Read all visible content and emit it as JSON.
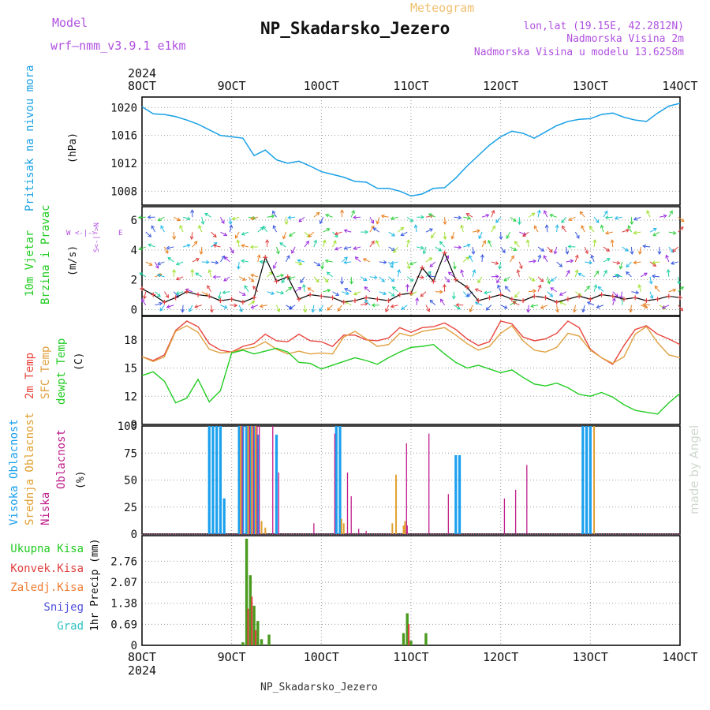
{
  "header": {
    "model_label": "Model",
    "model_value": "wrf–nmm_v3.9.1  e1km",
    "chart_kind": "Meteogram",
    "station": "NP_Skadarsko_Jezero",
    "lonlat": "lon,lat (19.15E, 42.2812N)",
    "altitude": "Nadmorska Visina 2m",
    "model_altitude": "Nadmorska Visina u modelu 13.6258m",
    "credit": "made by Angel",
    "footer_station": "NP_Skadarsko_Jezero"
  },
  "time_axis": {
    "year": "2024",
    "ticks": [
      "8OCT",
      "9OCT",
      "10OCT",
      "11OCT",
      "12OCT",
      "13OCT",
      "14OCT"
    ],
    "range_hours": [
      0,
      144
    ],
    "step_hours": 3
  },
  "colors": {
    "pressure": "#19a0e6",
    "temp2m": "#e8443c",
    "sfc": "#e0a040",
    "dewpt": "#22cc22",
    "high_cloud": "#1aa0ee",
    "mid_cloud": "#e0a030",
    "low_cloud": "#c0208c",
    "precip": "#4a9a1e",
    "conv": "#e04040",
    "snow": "#5050dd",
    "grad": "#30c0c0",
    "model": "#b050e0",
    "meteogram": "#f0c070"
  },
  "chart_data": [
    {
      "type": "line",
      "panel": "pressure",
      "ylabel_1": "Pritisak na nivou mora",
      "ylabel_2": "(hPa)",
      "ylim": [
        1006,
        1021.5
      ],
      "yticks": [
        1008,
        1012,
        1016,
        1020
      ],
      "x_hours": [
        0,
        3,
        6,
        9,
        12,
        15,
        18,
        21,
        24,
        27,
        30,
        33,
        36,
        39,
        42,
        45,
        48,
        51,
        54,
        57,
        60,
        63,
        66,
        69,
        72,
        75,
        78,
        81,
        84,
        87,
        90,
        93,
        96,
        99,
        102,
        105,
        108,
        111,
        114,
        117,
        120,
        123,
        126,
        129,
        132,
        135,
        138,
        141,
        144
      ],
      "series": [
        {
          "name": "",
          "values": [
            1020.1,
            1019.1,
            1019.0,
            1018.7,
            1018.2,
            1017.6,
            1016.8,
            1016.0,
            1015.8,
            1015.6,
            1013.1,
            1013.9,
            1012.5,
            1012.0,
            1012.3,
            1011.6,
            1010.8,
            1010.4,
            1010.0,
            1009.4,
            1009.3,
            1008.4,
            1008.4,
            1008.0,
            1007.3,
            1007.6,
            1008.4,
            1008.5,
            1009.9,
            1011.6,
            1013.1,
            1014.6,
            1015.8,
            1016.6,
            1016.3,
            1015.6,
            1016.5,
            1017.4,
            1018.0,
            1018.3,
            1018.4,
            1019.0,
            1019.2,
            1018.6,
            1018.2,
            1018.0,
            1019.2,
            1020.2,
            1020.6
          ]
        }
      ]
    },
    {
      "type": "line",
      "panel": "wind",
      "ylabel_1": "10m Vjetar",
      "ylabel_2": "Brzina i Pravac",
      "ylabel_3": "(m/s)",
      "compass": {
        "n": "N",
        "s": "S",
        "w": "W",
        "e": "E"
      },
      "ylim": [
        -0.4,
        6.9
      ],
      "yticks": [
        0,
        2,
        4,
        6
      ],
      "x_hours": [
        0,
        3,
        6,
        9,
        12,
        15,
        18,
        21,
        24,
        27,
        30,
        33,
        36,
        39,
        42,
        45,
        48,
        51,
        54,
        57,
        60,
        63,
        66,
        69,
        72,
        75,
        78,
        81,
        84,
        87,
        90,
        93,
        96,
        99,
        102,
        105,
        108,
        111,
        114,
        117,
        120,
        123,
        126,
        129,
        132,
        135,
        138,
        141,
        144
      ],
      "series": [
        {
          "name": "",
          "values": [
            1.4,
            1.0,
            0.5,
            0.8,
            1.2,
            1.0,
            0.9,
            0.6,
            0.7,
            0.5,
            0.8,
            3.5,
            1.9,
            2.2,
            0.7,
            1.0,
            0.9,
            0.8,
            0.5,
            0.6,
            0.8,
            0.7,
            0.6,
            1.0,
            1.1,
            2.8,
            1.9,
            3.8,
            2.0,
            1.5,
            0.6,
            0.8,
            1.0,
            0.7,
            0.6,
            0.9,
            0.8,
            0.5,
            0.7,
            0.9,
            0.7,
            1.0,
            0.9,
            0.7,
            0.8,
            0.6,
            0.7,
            0.9,
            0.8
          ]
        }
      ]
    },
    {
      "type": "line",
      "panel": "temperature",
      "ylabel_1": "2m Temp",
      "ylabel_2": "SFC Temp",
      "ylabel_3": "dewpt Temp",
      "ylabel_4": "(C)",
      "ylim": [
        9,
        20.5
      ],
      "yticks": [
        9,
        12,
        15,
        18
      ],
      "x_hours": [
        0,
        3,
        6,
        9,
        12,
        15,
        18,
        21,
        24,
        27,
        30,
        33,
        36,
        39,
        42,
        45,
        48,
        51,
        54,
        57,
        60,
        63,
        66,
        69,
        72,
        75,
        78,
        81,
        84,
        87,
        90,
        93,
        96,
        99,
        102,
        105,
        108,
        111,
        114,
        117,
        120,
        123,
        126,
        129,
        132,
        135,
        138,
        141,
        144
      ],
      "series": [
        {
          "name": "2m Temp",
          "values": [
            16.2,
            15.8,
            16.4,
            19.0,
            20.0,
            19.4,
            17.6,
            16.9,
            16.7,
            17.3,
            17.6,
            18.6,
            17.9,
            17.8,
            18.6,
            17.9,
            17.8,
            17.3,
            18.5,
            18.5,
            18.0,
            17.9,
            18.2,
            19.3,
            18.8,
            19.3,
            19.4,
            19.8,
            19.1,
            18.1,
            17.4,
            17.8,
            20.0,
            19.7,
            18.3,
            17.9,
            18.1,
            18.7,
            20.0,
            19.3,
            17.0,
            16.1,
            15.4,
            17.4,
            19.1,
            19.5,
            18.6,
            18.1,
            17.5
          ]
        },
        {
          "name": "SFC Temp",
          "values": [
            16.2,
            15.7,
            16.2,
            18.9,
            19.5,
            18.8,
            17.0,
            16.6,
            16.7,
            17.0,
            17.2,
            17.8,
            17.0,
            16.5,
            16.8,
            16.5,
            16.6,
            16.5,
            18.3,
            18.9,
            18.1,
            17.3,
            17.5,
            18.7,
            18.4,
            18.9,
            19.1,
            19.3,
            18.5,
            17.6,
            16.9,
            17.3,
            18.7,
            19.5,
            17.9,
            16.9,
            16.7,
            17.2,
            18.7,
            18.4,
            16.9,
            16.1,
            15.5,
            16.2,
            18.6,
            19.4,
            17.7,
            16.4,
            16.1
          ]
        },
        {
          "name": "dewpt Temp",
          "values": [
            14.2,
            14.6,
            13.6,
            11.3,
            11.8,
            13.8,
            11.4,
            12.6,
            16.6,
            16.9,
            16.5,
            16.8,
            17.1,
            16.7,
            15.6,
            15.5,
            14.9,
            15.3,
            15.7,
            16.1,
            15.8,
            15.4,
            16.1,
            16.7,
            17.2,
            17.3,
            17.5,
            16.5,
            15.6,
            15.0,
            15.3,
            14.9,
            14.5,
            14.8,
            14.0,
            13.3,
            13.1,
            13.4,
            12.9,
            12.2,
            12.0,
            12.4,
            11.9,
            11.1,
            10.5,
            10.3,
            10.1,
            11.3,
            12.3
          ]
        }
      ]
    },
    {
      "type": "bar",
      "panel": "clouds",
      "ylabel_1": "Visoka Oblacnost",
      "ylabel_2": "Srednja Oblacnost",
      "ylabel_3": "Niska",
      "ylabel_4": "Oblacnost",
      "ylabel_5": "(%)",
      "ylim": [
        0,
        100
      ],
      "yticks": [
        0,
        25,
        50,
        75,
        100
      ],
      "series": [
        {
          "name": "Visoka Oblacnost",
          "x_hours": [
            18,
            19,
            20,
            21,
            22,
            26,
            27,
            28,
            29,
            30,
            31,
            36,
            52,
            53,
            84,
            85,
            118,
            119,
            120
          ],
          "values": [
            100,
            100,
            100,
            100,
            33,
            100,
            100,
            100,
            100,
            100,
            92,
            92,
            100,
            100,
            73,
            73,
            100,
            100,
            100
          ]
        },
        {
          "name": "Srednja Oblacnost",
          "x_hours": [
            26.4,
            28.4,
            29.4,
            30.4,
            32,
            33,
            53.4,
            54,
            67,
            68,
            70,
            70.4,
            121
          ],
          "values": [
            100,
            100,
            100,
            100,
            12,
            6,
            14,
            10,
            10,
            55,
            8,
            12,
            100
          ]
        },
        {
          "name": "Niska Oblacnost",
          "x_hours": [
            26.8,
            28.8,
            29.8,
            30.8,
            31.4,
            35,
            36.6,
            46,
            51.6,
            55,
            56,
            58,
            60,
            70.8,
            71,
            76.8,
            82,
            97,
            100,
            103
          ],
          "values": [
            100,
            100,
            100,
            100,
            100,
            100,
            57,
            10,
            93,
            57,
            35,
            5,
            3,
            84,
            8,
            93,
            37,
            33,
            41,
            64
          ]
        }
      ]
    },
    {
      "type": "bar",
      "panel": "precip",
      "ylabel_1": "1hr Precip (mm)",
      "legend": [
        "Ukupna Kisa",
        "Konvek.Kisa",
        "Zaledj.Kisa",
        "Snijeg",
        "Grad"
      ],
      "ylim": [
        0,
        3.6
      ],
      "yticks": [
        "0",
        "0.69",
        "1.38",
        "2.07",
        "2.76"
      ],
      "series": [
        {
          "name": "Ukupna Kisa",
          "x_hours": [
            27,
            28,
            29,
            30,
            31,
            32,
            34,
            70,
            71,
            72,
            76
          ],
          "values": [
            0.1,
            3.5,
            2.3,
            1.3,
            0.8,
            0.2,
            0.35,
            0.4,
            1.05,
            0.15,
            0.4
          ]
        },
        {
          "name": "Konvek.Kisa",
          "x_hours": [
            28.4,
            29.4,
            30.4,
            71.4
          ],
          "values": [
            1.2,
            1.6,
            0.5,
            0.7
          ]
        }
      ]
    }
  ]
}
